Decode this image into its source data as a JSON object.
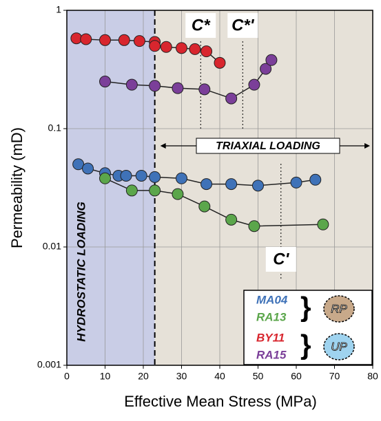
{
  "chart_data": {
    "type": "line",
    "log_y": true,
    "grid": true,
    "x_label": "Effective Mean Stress (MPa)",
    "y_label": "Permeability (mD)",
    "xlim": [
      0,
      80
    ],
    "xticks": [
      0,
      10,
      20,
      30,
      40,
      50,
      60,
      70,
      80
    ],
    "ylim": [
      0.001,
      1
    ],
    "yticks": [
      0.001,
      0.01,
      0.1,
      1
    ],
    "series": [
      {
        "name": "MA04",
        "color": "#3f72b8",
        "x": [
          3,
          5.5,
          10,
          13.5,
          15.5,
          19.5,
          23,
          30,
          36.5,
          43,
          50,
          60,
          65
        ],
        "values": [
          0.05,
          0.046,
          0.042,
          0.04,
          0.04,
          0.04,
          0.039,
          0.038,
          0.034,
          0.034,
          0.033,
          0.035,
          0.037
        ]
      },
      {
        "name": "RA13",
        "color": "#5ba64b",
        "x": [
          10,
          17,
          23,
          29,
          36,
          43,
          49,
          67
        ],
        "values": [
          0.038,
          0.03,
          0.03,
          0.028,
          0.022,
          0.017,
          0.015,
          0.0155
        ]
      },
      {
        "name": "BY11",
        "color": "#d8262e",
        "x": [
          2.5,
          5,
          10,
          15,
          19,
          23,
          23,
          26,
          30,
          33.5,
          36.5,
          40
        ],
        "values": [
          0.58,
          0.57,
          0.56,
          0.56,
          0.55,
          0.54,
          0.5,
          0.49,
          0.48,
          0.47,
          0.45,
          0.36
        ]
      },
      {
        "name": "RA15",
        "color": "#7b3f99",
        "x": [
          10,
          17,
          23,
          29,
          36,
          43,
          49,
          52,
          53.5
        ],
        "values": [
          0.25,
          0.235,
          0.23,
          0.22,
          0.215,
          0.18,
          0.235,
          0.32,
          0.38
        ]
      }
    ],
    "hydrostatic_limit": 23,
    "region_labels": [
      "HYDROSTATIC LOADING",
      "TRIAXIAL LOADING"
    ],
    "critical_points": [
      {
        "label": "C*",
        "x": 35
      },
      {
        "label": "C*'",
        "x": 46
      },
      {
        "label": "C'",
        "x": 56
      }
    ],
    "legend_icons": [
      "RP",
      "UP"
    ]
  }
}
